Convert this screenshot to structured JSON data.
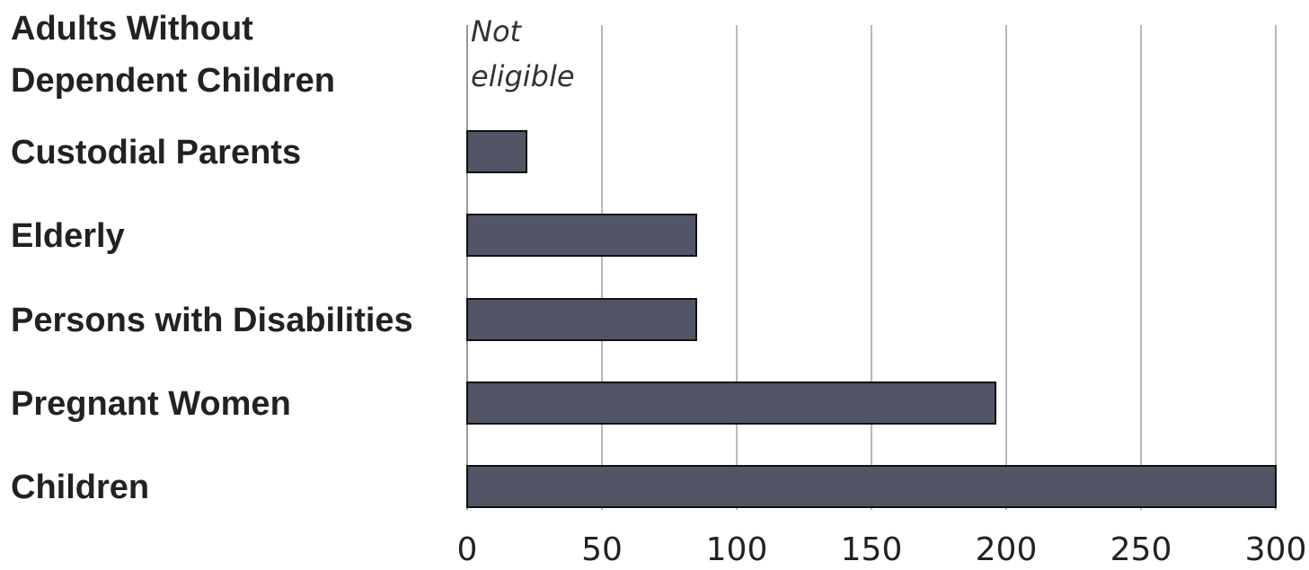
{
  "colors": {
    "bar": "#525566"
  },
  "chart_data": {
    "type": "bar",
    "orientation": "horizontal",
    "title": "",
    "xlabel": "",
    "ylabel": "",
    "categories": [
      [
        "Adults Without",
        "Dependent Children"
      ],
      [
        "Custodial Parents"
      ],
      [
        "Elderly"
      ],
      [
        "Persons with Disabilities"
      ],
      [
        "Pregnant Women"
      ],
      [
        "Children"
      ]
    ],
    "values": [
      null,
      22,
      85,
      85,
      196,
      300
    ],
    "annotations": [
      {
        "category_index": 0,
        "lines": [
          "Not",
          "eligible"
        ]
      }
    ],
    "xlim": [
      0,
      300
    ],
    "xticks": [
      0,
      50,
      100,
      150,
      200,
      250,
      300
    ],
    "grid": true
  }
}
